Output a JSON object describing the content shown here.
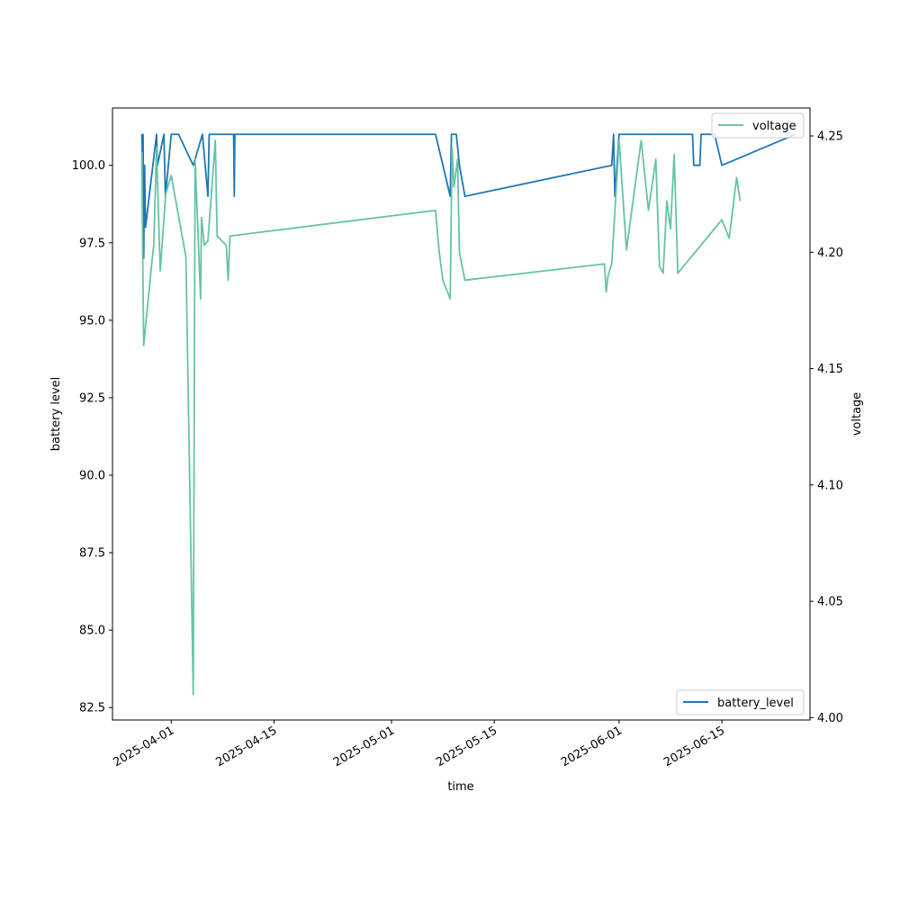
{
  "chart_data": {
    "type": "line",
    "xlabel": "time",
    "ylabel": "battery level",
    "y2label": "voltage",
    "xlim": [
      "2025-03-24",
      "2025-06-27"
    ],
    "ylim": [
      82.1,
      101.85
    ],
    "y2lim": [
      3.999,
      4.262
    ],
    "x_tick_labels": [
      "2025-04-01",
      "2025-04-15",
      "2025-05-01",
      "2025-05-15",
      "2025-06-01",
      "2025-06-15"
    ],
    "y_tick_labels": [
      "82.5",
      "85.0",
      "87.5",
      "90.0",
      "92.5",
      "95.0",
      "97.5",
      "100.0"
    ],
    "y2_tick_labels": [
      "4.00",
      "4.05",
      "4.10",
      "4.15",
      "4.20",
      "4.25"
    ],
    "legend_left": {
      "label": "battery_level",
      "placement": "lower-right"
    },
    "legend_right": {
      "label": "voltage",
      "placement": "upper-right"
    },
    "colors": {
      "battery_level": "#1f77b4",
      "voltage": "#66c2a5"
    },
    "series": [
      {
        "name": "battery_level",
        "axis": "left",
        "points": [
          [
            "2025-03-28T00:00",
            101
          ],
          [
            "2025-03-28T02:00",
            100
          ],
          [
            "2025-03-28T04:00",
            101
          ],
          [
            "2025-03-28T06:00",
            97
          ],
          [
            "2025-03-28T09:00",
            100
          ],
          [
            "2025-03-28T12:00",
            98
          ],
          [
            "2025-03-30T00:00",
            101
          ],
          [
            "2025-03-30T03:00",
            100
          ],
          [
            "2025-03-31T00:00",
            101
          ],
          [
            "2025-03-31T05:00",
            99
          ],
          [
            "2025-04-01T00:00",
            101
          ],
          [
            "2025-04-02T00:00",
            101
          ],
          [
            "2025-04-04T00:00",
            100
          ],
          [
            "2025-04-05T06:00",
            101
          ],
          [
            "2025-04-06T00:00",
            99
          ],
          [
            "2025-04-06T04:00",
            101
          ],
          [
            "2025-04-09T12:00",
            101
          ],
          [
            "2025-04-09T14:00",
            99
          ],
          [
            "2025-04-09T16:00",
            101
          ],
          [
            "2025-05-07T00:00",
            101
          ],
          [
            "2025-05-08T00:00",
            100
          ],
          [
            "2025-05-09T00:00",
            99
          ],
          [
            "2025-05-09T04:00",
            101
          ],
          [
            "2025-05-09T20:00",
            101
          ],
          [
            "2025-05-10T06:00",
            100
          ],
          [
            "2025-05-11T00:00",
            99
          ],
          [
            "2025-05-31T00:00",
            100
          ],
          [
            "2025-05-31T06:00",
            101
          ],
          [
            "2025-05-31T10:00",
            99
          ],
          [
            "2025-06-01T00:00",
            101
          ],
          [
            "2025-06-11T00:00",
            101
          ],
          [
            "2025-06-11T04:00",
            100
          ],
          [
            "2025-06-12T00:00",
            100
          ],
          [
            "2025-06-12T04:00",
            101
          ],
          [
            "2025-06-14T00:00",
            101
          ],
          [
            "2025-06-15T00:00",
            100
          ],
          [
            "2025-06-25T00:00",
            101
          ]
        ]
      },
      {
        "name": "voltage",
        "axis": "right",
        "points": [
          [
            "2025-03-28T00:00",
            4.243
          ],
          [
            "2025-03-28T03:00",
            4.195
          ],
          [
            "2025-03-28T06:00",
            4.16
          ],
          [
            "2025-03-29T12:00",
            4.2
          ],
          [
            "2025-03-29T15:00",
            4.203
          ],
          [
            "2025-03-30T00:00",
            4.245
          ],
          [
            "2025-03-30T12:00",
            4.192
          ],
          [
            "2025-03-31T06:00",
            4.225
          ],
          [
            "2025-04-01T00:00",
            4.233
          ],
          [
            "2025-04-03T00:00",
            4.198
          ],
          [
            "2025-04-04T00:00",
            4.01
          ],
          [
            "2025-04-04T06:00",
            4.24
          ],
          [
            "2025-04-05T00:00",
            4.18
          ],
          [
            "2025-04-05T03:00",
            4.215
          ],
          [
            "2025-04-05T12:00",
            4.203
          ],
          [
            "2025-04-06T00:00",
            4.205
          ],
          [
            "2025-04-07T00:00",
            4.248
          ],
          [
            "2025-04-07T06:00",
            4.207
          ],
          [
            "2025-04-08T12:00",
            4.203
          ],
          [
            "2025-04-08T18:00",
            4.188
          ],
          [
            "2025-04-09T00:00",
            4.207
          ],
          [
            "2025-05-07T00:00",
            4.218
          ],
          [
            "2025-05-07T12:00",
            4.2
          ],
          [
            "2025-05-08T00:00",
            4.188
          ],
          [
            "2025-05-09T00:00",
            4.18
          ],
          [
            "2025-05-09T06:00",
            4.245
          ],
          [
            "2025-05-09T12:00",
            4.228
          ],
          [
            "2025-05-10T00:00",
            4.24
          ],
          [
            "2025-05-10T06:00",
            4.2
          ],
          [
            "2025-05-11T00:00",
            4.188
          ],
          [
            "2025-05-30T00:00",
            4.195
          ],
          [
            "2025-05-30T06:00",
            4.183
          ],
          [
            "2025-05-30T12:00",
            4.19
          ],
          [
            "2025-05-31T00:00",
            4.195
          ],
          [
            "2025-06-01T00:00",
            4.248
          ],
          [
            "2025-06-02T00:00",
            4.201
          ],
          [
            "2025-06-04T00:00",
            4.248
          ],
          [
            "2025-06-05T00:00",
            4.218
          ],
          [
            "2025-06-06T00:00",
            4.24
          ],
          [
            "2025-06-06T12:00",
            4.194
          ],
          [
            "2025-06-07T00:00",
            4.191
          ],
          [
            "2025-06-07T12:00",
            4.222
          ],
          [
            "2025-06-08T00:00",
            4.21
          ],
          [
            "2025-06-08T12:00",
            4.242
          ],
          [
            "2025-06-09T00:00",
            4.191
          ],
          [
            "2025-06-15T00:00",
            4.214
          ],
          [
            "2025-06-16T00:00",
            4.206
          ],
          [
            "2025-06-17T00:00",
            4.232
          ],
          [
            "2025-06-17T12:00",
            4.222
          ]
        ]
      }
    ]
  }
}
